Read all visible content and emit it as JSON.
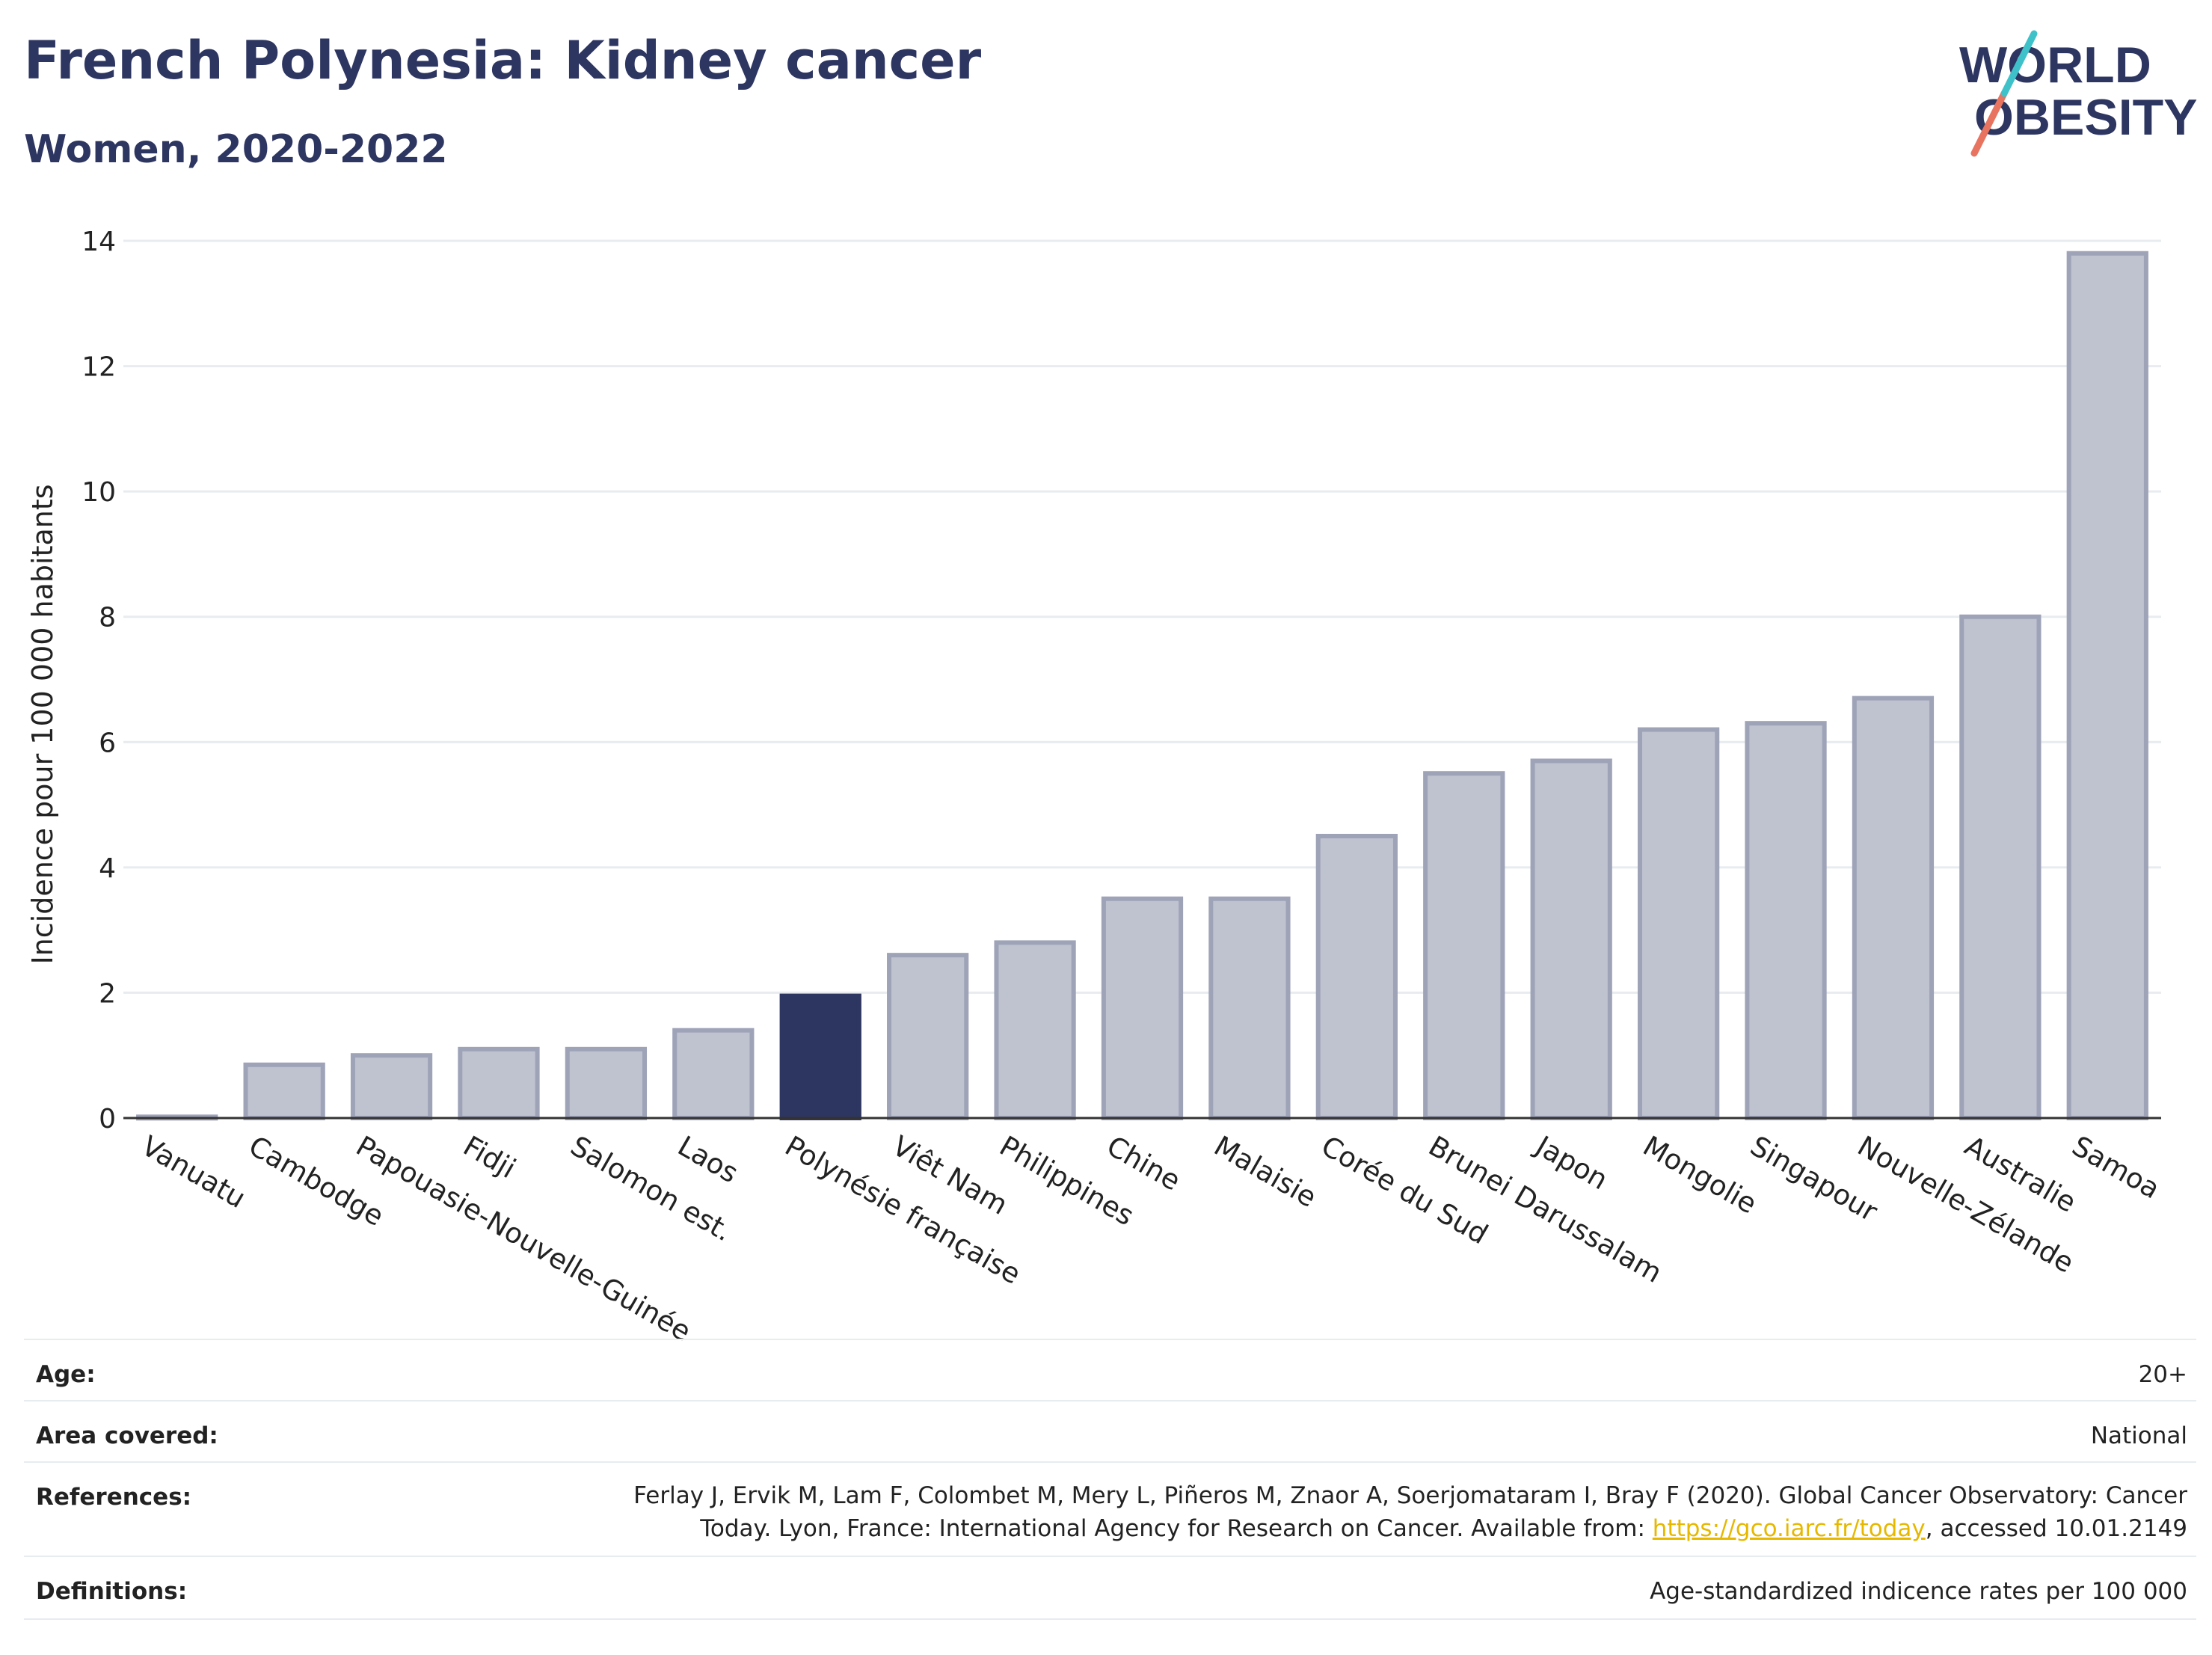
{
  "header": {
    "title": "French Polynesia: Kidney cancer",
    "subtitle": "Women, 2020-2022"
  },
  "logo": {
    "line1": "WORLD",
    "line2": "OBESITY"
  },
  "chart_data": {
    "type": "bar",
    "ylabel": "Incidence pour 100 000 habitants",
    "ylim": [
      0,
      14
    ],
    "yticks": [
      0,
      2,
      4,
      6,
      8,
      10,
      12,
      14
    ],
    "categories": [
      "Vanuatu",
      "Cambodge",
      "Papouasie-Nouvelle-Guinée",
      "Fidji",
      "Salomon est.",
      "Laos",
      "Polynésie française",
      "Viêt Nam",
      "Philippines",
      "Chine",
      "Malaisie",
      "Corée du Sud",
      "Brunei Darussalam",
      "Japon",
      "Mongolie",
      "Singapour",
      "Nouvelle-Zélande",
      "Australie",
      "Samoa"
    ],
    "values": [
      0.02,
      0.85,
      1.0,
      1.1,
      1.1,
      1.4,
      1.95,
      2.6,
      2.8,
      3.5,
      3.5,
      4.5,
      5.5,
      5.7,
      6.2,
      6.3,
      6.7,
      8.0,
      13.8
    ],
    "highlight": "Polynésie française",
    "colors": {
      "bar": "#bfc2cf",
      "bar_border": "#9ea3b8",
      "highlight": "#2d3561",
      "grid": "#e8ecef",
      "axis": "#333333"
    },
    "grid": true
  },
  "meta": {
    "age": {
      "label": "Age:",
      "value": "20+"
    },
    "area": {
      "label": "Area covered:",
      "value": "National"
    },
    "references": {
      "label": "References:",
      "value_line1": "Ferlay J, Ervik M, Lam F, Colombet M, Mery L, Piñeros M, Znaor A, Soerjomataram I, Bray F (2020). Global Cancer Observatory: Cancer",
      "value_line2_pre": "Today. Lyon, France: International Agency for Research on Cancer. Available from: ",
      "link": "https://gco.iarc.fr/today",
      "value_line2_post": ", accessed 10.01.2149"
    },
    "definitions": {
      "label": "Definitions:",
      "value": "Age-standardized indicence rates per 100 000"
    }
  }
}
